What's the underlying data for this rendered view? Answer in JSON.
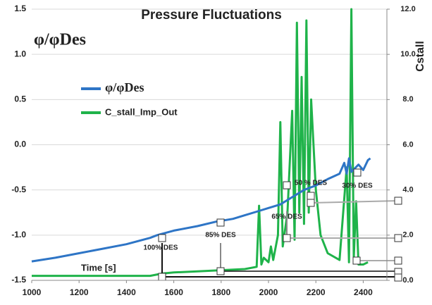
{
  "chart_data": {
    "type": "line",
    "title": "Pressure Fluctuations",
    "ylabel": "φ/φDes",
    "y2label": "Cstall",
    "xlabel": "Time [s]",
    "xlim": [
      1000,
      2500
    ],
    "xticks": [
      1000,
      1200,
      1400,
      1600,
      1800,
      2000,
      2200,
      2400
    ],
    "ylim": [
      -1.5,
      1.5
    ],
    "yticks": [
      -1.5,
      {
        "value": -1,
        "label": "-1.0"
      },
      -0.5,
      {
        "value": 0,
        "label": "0.0"
      },
      0.5,
      {
        "value": 1,
        "label": "1.0"
      },
      1.5
    ],
    "y2lim": [
      0,
      12
    ],
    "y2ticks": [
      {
        "value": 0,
        "label": "0.0"
      },
      {
        "value": 2,
        "label": "2.0"
      },
      {
        "value": 4,
        "label": "4.0"
      },
      {
        "value": 6,
        "label": "6.0"
      },
      {
        "value": 8,
        "label": "8.0"
      },
      {
        "value": 10,
        "label": "10.0"
      },
      {
        "value": 12,
        "label": "12.0"
      }
    ],
    "grid": true,
    "legend": "upper left",
    "annotations": [
      "100% DES",
      "85% DES",
      "65% DES",
      "50 % DES",
      "30% DES"
    ],
    "series": [
      {
        "name": "φ/φDes",
        "color": "#2e75c6",
        "x": [
          1000,
          1100,
          1200,
          1300,
          1400,
          1500,
          1530,
          1600,
          1700,
          1780,
          1850,
          1900,
          1950,
          2000,
          2050,
          2100,
          2150,
          2200,
          2250,
          2300,
          2320,
          2330,
          2340,
          2350,
          2380,
          2400,
          2420,
          2430
        ],
        "values": [
          -1.29,
          -1.25,
          -1.2,
          -1.15,
          -1.1,
          -1.03,
          -1.0,
          -0.95,
          -0.9,
          -0.85,
          -0.82,
          -0.78,
          -0.74,
          -0.7,
          -0.66,
          -0.58,
          -0.5,
          -0.45,
          -0.38,
          -0.32,
          -0.2,
          -0.32,
          -0.15,
          -0.3,
          -0.22,
          -0.28,
          -0.17,
          -0.15
        ]
      },
      {
        "name": "C_stall_Imp_Out",
        "color": "#1fb34a",
        "axis": "y2",
        "x": [
          1000,
          1500,
          1550,
          1600,
          1700,
          1800,
          1900,
          1950,
          1960,
          1970,
          1980,
          2000,
          2010,
          2020,
          2040,
          2050,
          2060,
          2080,
          2100,
          2110,
          2120,
          2130,
          2140,
          2150,
          2160,
          2170,
          2180,
          2200,
          2220,
          2250,
          2300,
          2330,
          2340,
          2350,
          2360,
          2370,
          2380,
          2400,
          2420
        ],
        "values": [
          0.2,
          0.2,
          0.3,
          0.35,
          0.4,
          0.45,
          0.5,
          0.6,
          3.3,
          0.7,
          1.0,
          0.8,
          1.5,
          0.9,
          2.0,
          7.0,
          1.5,
          3.0,
          7.5,
          1.8,
          11.4,
          3.0,
          9.0,
          2.5,
          11.5,
          3.0,
          8.0,
          4.0,
          2.0,
          1.2,
          0.9,
          5.0,
          0.8,
          12.0,
          1.0,
          3.5,
          0.7,
          0.7,
          0.8
        ]
      }
    ]
  }
}
